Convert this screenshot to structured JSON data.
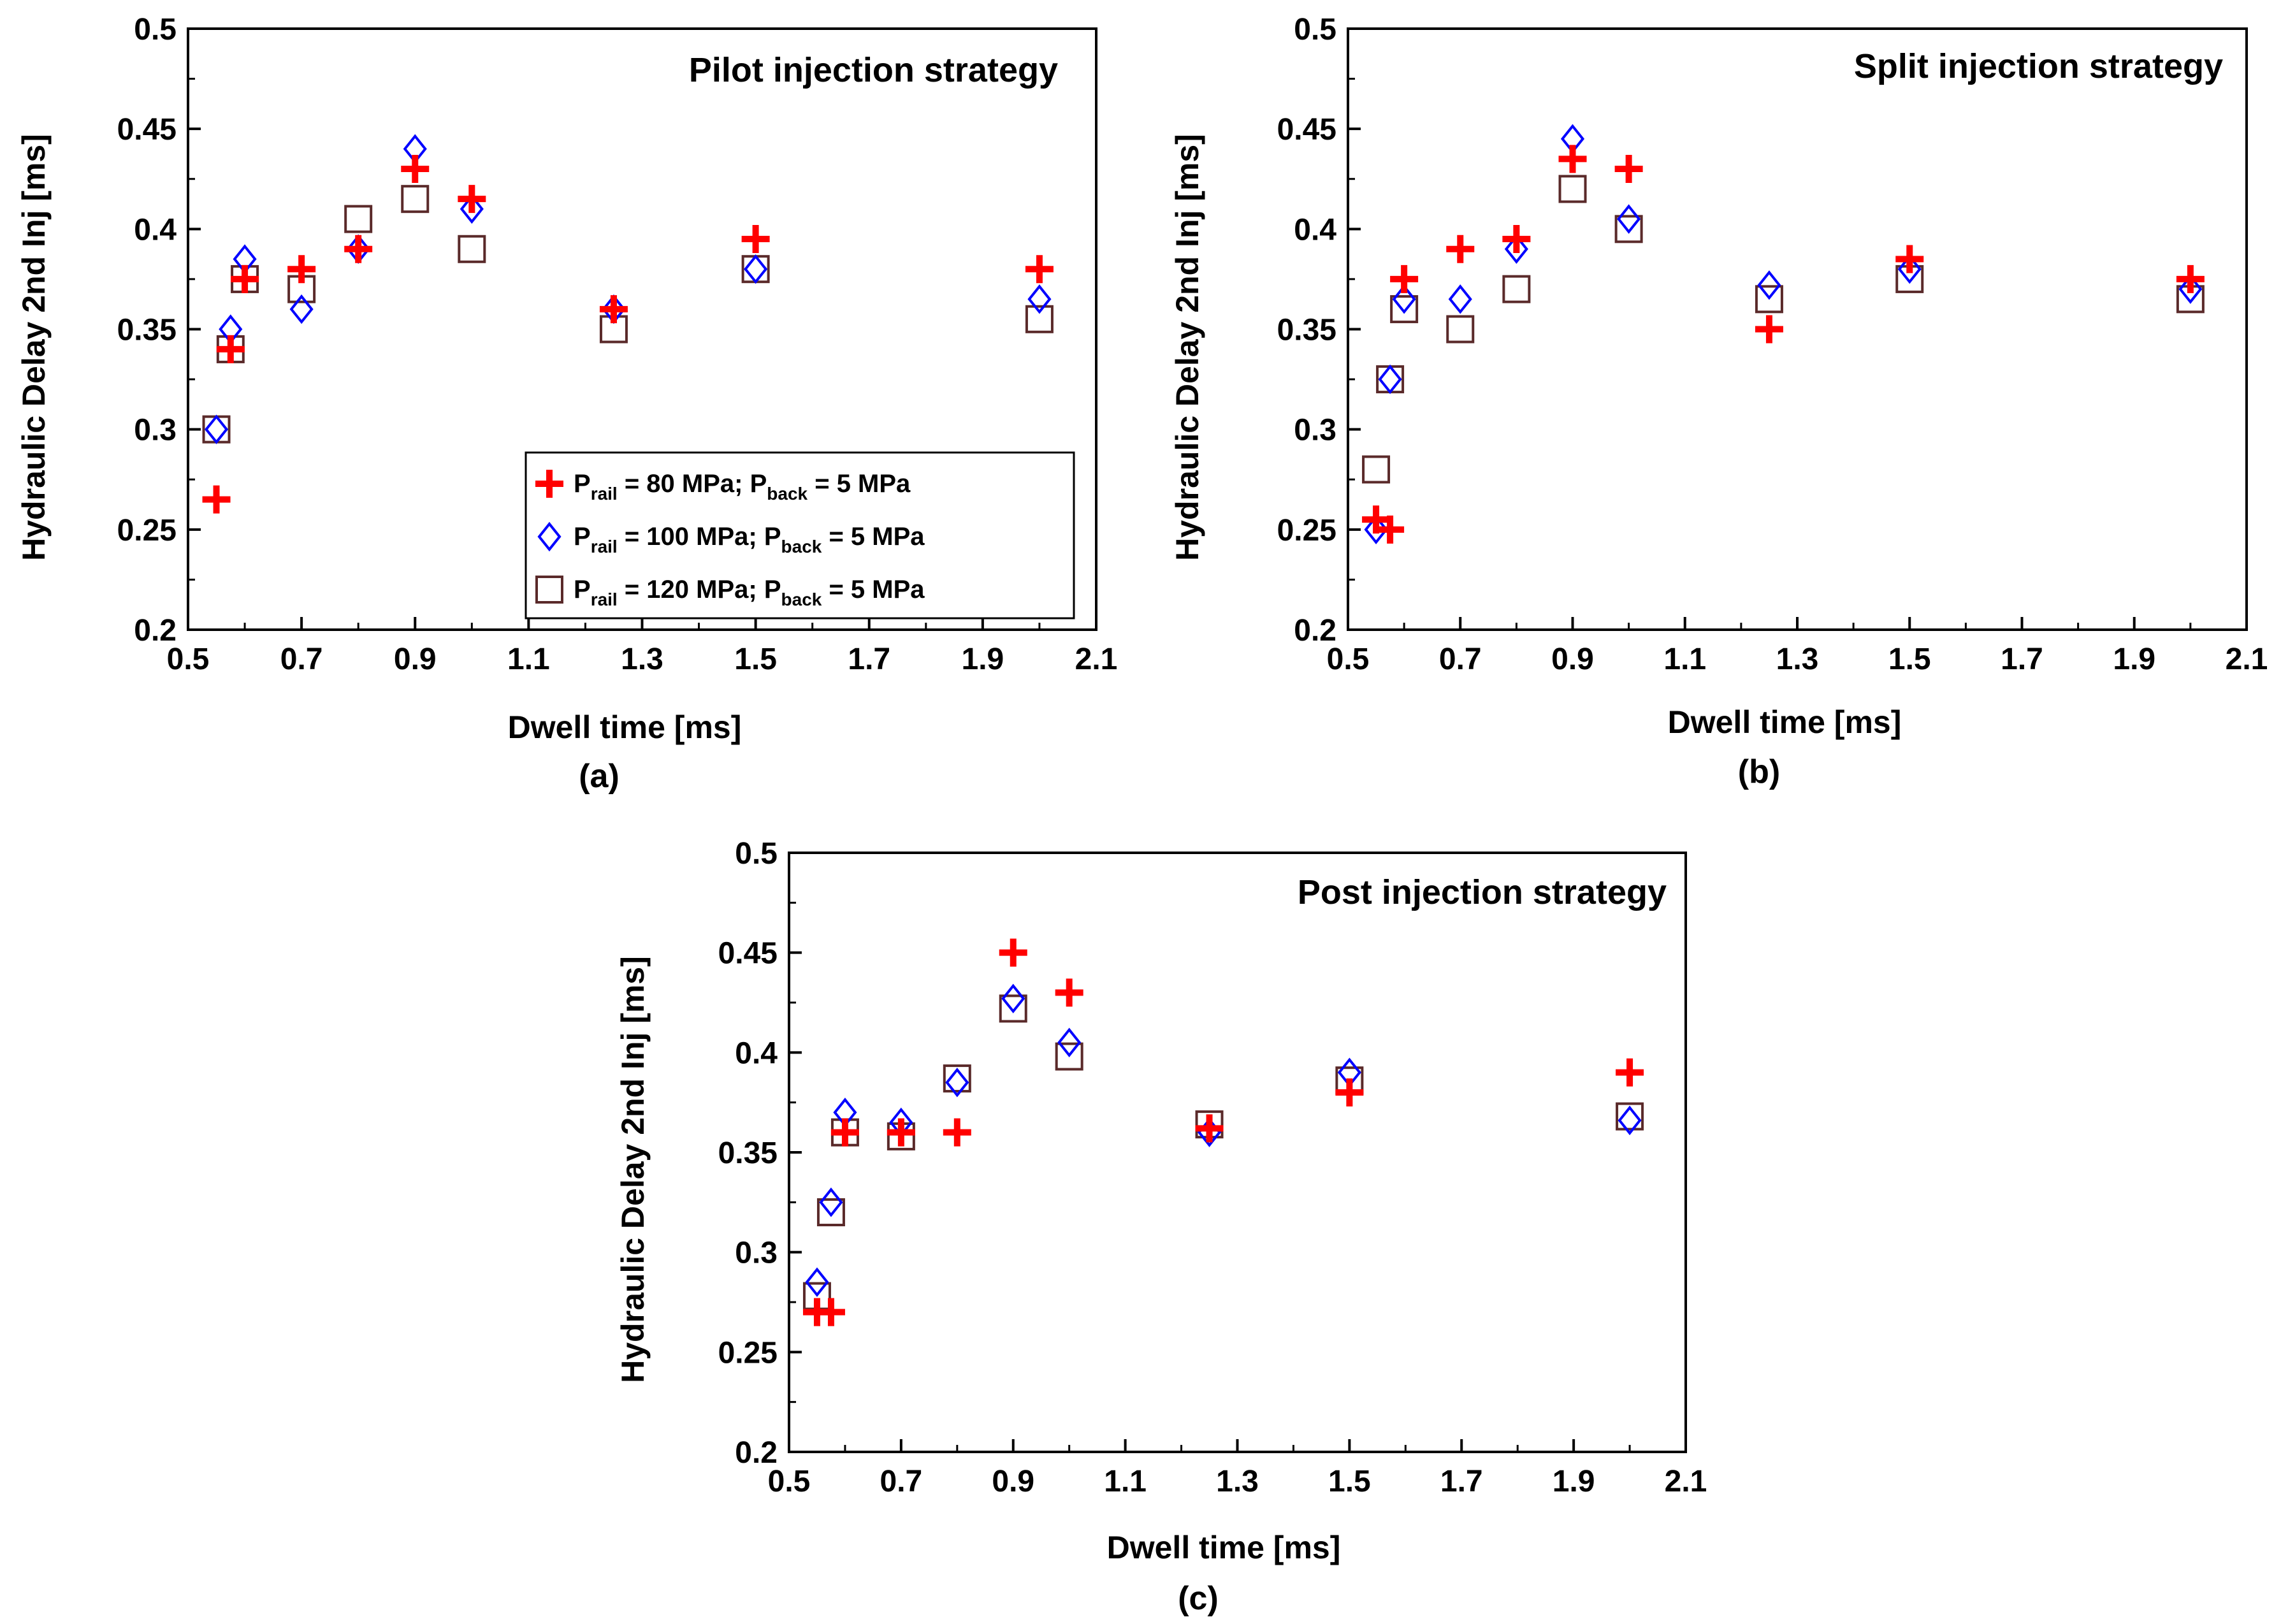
{
  "figure": {
    "series_names": [
      "P_rail = 80 MPa; P_back = 5 MPa",
      "P_rail = 100 MPa; P_back = 5 MPa",
      "P_rail = 120 MPa; P_back = 5 MPa"
    ],
    "legend": [
      {
        "p": "P",
        "sub1": "rail",
        "mid": " = 80 MPa; P",
        "sub2": "back",
        "end": " = 5 MPa",
        "marker": "plus",
        "color": "#ff0000"
      },
      {
        "p": "P",
        "sub1": "rail",
        "mid": " = 100 MPa; P",
        "sub2": "back",
        "end": " = 5 MPa",
        "marker": "diamond",
        "color": "#0000ff"
      },
      {
        "p": "P",
        "sub1": "rail",
        "mid": " = 120 MPa; P",
        "sub2": "back",
        "end": " = 5 MPa",
        "marker": "square",
        "color": "#5a2a2a"
      }
    ],
    "colors": {
      "plus": "#ff0000",
      "diamond": "#0000ff",
      "square": "#5a2a2a"
    }
  },
  "chart_data": [
    {
      "type": "scatter",
      "panel_label": "(a)",
      "title": "Pilot injection strategy",
      "xlabel": "Dwell time [ms]",
      "ylabel": "Hydraulic Delay 2nd Inj [ms]",
      "xlim": [
        0.5,
        2.1
      ],
      "ylim": [
        0.2,
        0.5
      ],
      "xticks": [
        "0.5",
        "0.7",
        "0.9",
        "1.1",
        "1.3",
        "1.5",
        "1.7",
        "1.9",
        "2.1"
      ],
      "yticks": [
        "0.2",
        "0.25",
        "0.3",
        "0.35",
        "0.4",
        "0.45",
        "0.5"
      ],
      "legend_position": "bottom-right",
      "series": [
        {
          "name": "P_rail = 80 MPa; P_back = 5 MPa",
          "marker": "plus",
          "x": [
            0.55,
            0.575,
            0.6,
            0.7,
            0.8,
            0.9,
            1.0,
            1.25,
            1.5,
            2.0
          ],
          "y": [
            0.265,
            0.34,
            0.375,
            0.38,
            0.39,
            0.43,
            0.415,
            0.36,
            0.395,
            0.38
          ]
        },
        {
          "name": "P_rail = 100 MPa; P_back = 5 MPa",
          "marker": "diamond",
          "x": [
            0.55,
            0.575,
            0.6,
            0.7,
            0.8,
            0.9,
            1.0,
            1.25,
            1.5,
            2.0
          ],
          "y": [
            0.3,
            0.35,
            0.385,
            0.36,
            0.39,
            0.44,
            0.41,
            0.36,
            0.38,
            0.365
          ]
        },
        {
          "name": "P_rail = 120 MPa; P_back = 5 MPa",
          "marker": "square",
          "x": [
            0.55,
            0.575,
            0.6,
            0.7,
            0.8,
            0.9,
            1.0,
            1.25,
            1.5,
            2.0
          ],
          "y": [
            0.3,
            0.34,
            0.375,
            0.37,
            0.405,
            0.415,
            0.39,
            0.35,
            0.38,
            0.355
          ]
        }
      ]
    },
    {
      "type": "scatter",
      "panel_label": "(b)",
      "title": "Split injection strategy",
      "xlabel": "Dwell time [ms]",
      "ylabel": "Hydraulic Delay 2nd Inj [ms]",
      "xlim": [
        0.5,
        2.1
      ],
      "ylim": [
        0.2,
        0.5
      ],
      "xticks": [
        "0.5",
        "0.7",
        "0.9",
        "1.1",
        "1.3",
        "1.5",
        "1.7",
        "1.9",
        "2.1"
      ],
      "yticks": [
        "0.2",
        "0.25",
        "0.3",
        "0.35",
        "0.4",
        "0.45",
        "0.5"
      ],
      "series": [
        {
          "name": "P_rail = 80 MPa; P_back = 5 MPa",
          "marker": "plus",
          "x": [
            0.55,
            0.575,
            0.6,
            0.7,
            0.8,
            0.9,
            1.0,
            1.25,
            1.5,
            2.0
          ],
          "y": [
            0.255,
            0.25,
            0.375,
            0.39,
            0.395,
            0.435,
            0.43,
            0.35,
            0.385,
            0.375
          ]
        },
        {
          "name": "P_rail = 100 MPa; P_back = 5 MPa",
          "marker": "diamond",
          "x": [
            0.55,
            0.575,
            0.6,
            0.7,
            0.8,
            0.9,
            1.0,
            1.25,
            1.5,
            2.0
          ],
          "y": [
            0.25,
            0.325,
            0.365,
            0.365,
            0.39,
            0.445,
            0.405,
            0.372,
            0.38,
            0.37
          ]
        },
        {
          "name": "P_rail = 120 MPa; P_back = 5 MPa",
          "marker": "square",
          "x": [
            0.55,
            0.575,
            0.6,
            0.7,
            0.8,
            0.9,
            1.0,
            1.25,
            1.5,
            2.0
          ],
          "y": [
            0.28,
            0.325,
            0.36,
            0.35,
            0.37,
            0.42,
            0.4,
            0.365,
            0.375,
            0.365
          ]
        }
      ]
    },
    {
      "type": "scatter",
      "panel_label": "(c)",
      "title": "Post injection strategy",
      "xlabel": "Dwell time [ms]",
      "ylabel": "Hydraulic Delay 2nd Inj [ms]",
      "xlim": [
        0.5,
        2.1
      ],
      "ylim": [
        0.2,
        0.5
      ],
      "xticks": [
        "0.5",
        "0.7",
        "0.9",
        "1.1",
        "1.3",
        "1.5",
        "1.7",
        "1.9",
        "2.1"
      ],
      "yticks": [
        "0.2",
        "0.25",
        "0.3",
        "0.35",
        "0.4",
        "0.45",
        "0.5"
      ],
      "series": [
        {
          "name": "P_rail = 80 MPa; P_back = 5 MPa",
          "marker": "plus",
          "x": [
            0.55,
            0.575,
            0.6,
            0.7,
            0.8,
            0.9,
            1.0,
            1.25,
            1.5,
            2.0
          ],
          "y": [
            0.27,
            0.27,
            0.36,
            0.36,
            0.36,
            0.45,
            0.43,
            0.362,
            0.38,
            0.39
          ]
        },
        {
          "name": "P_rail = 100 MPa; P_back = 5 MPa",
          "marker": "diamond",
          "x": [
            0.55,
            0.575,
            0.6,
            0.7,
            0.8,
            0.9,
            1.0,
            1.25,
            1.5,
            2.0
          ],
          "y": [
            0.285,
            0.325,
            0.37,
            0.365,
            0.385,
            0.427,
            0.405,
            0.36,
            0.39,
            0.366
          ]
        },
        {
          "name": "P_rail = 120 MPa; P_back = 5 MPa",
          "marker": "square",
          "x": [
            0.55,
            0.575,
            0.6,
            0.7,
            0.8,
            0.9,
            1.0,
            1.25,
            1.5,
            2.0
          ],
          "y": [
            0.278,
            0.32,
            0.36,
            0.358,
            0.387,
            0.422,
            0.398,
            0.364,
            0.386,
            0.368
          ]
        }
      ]
    }
  ]
}
